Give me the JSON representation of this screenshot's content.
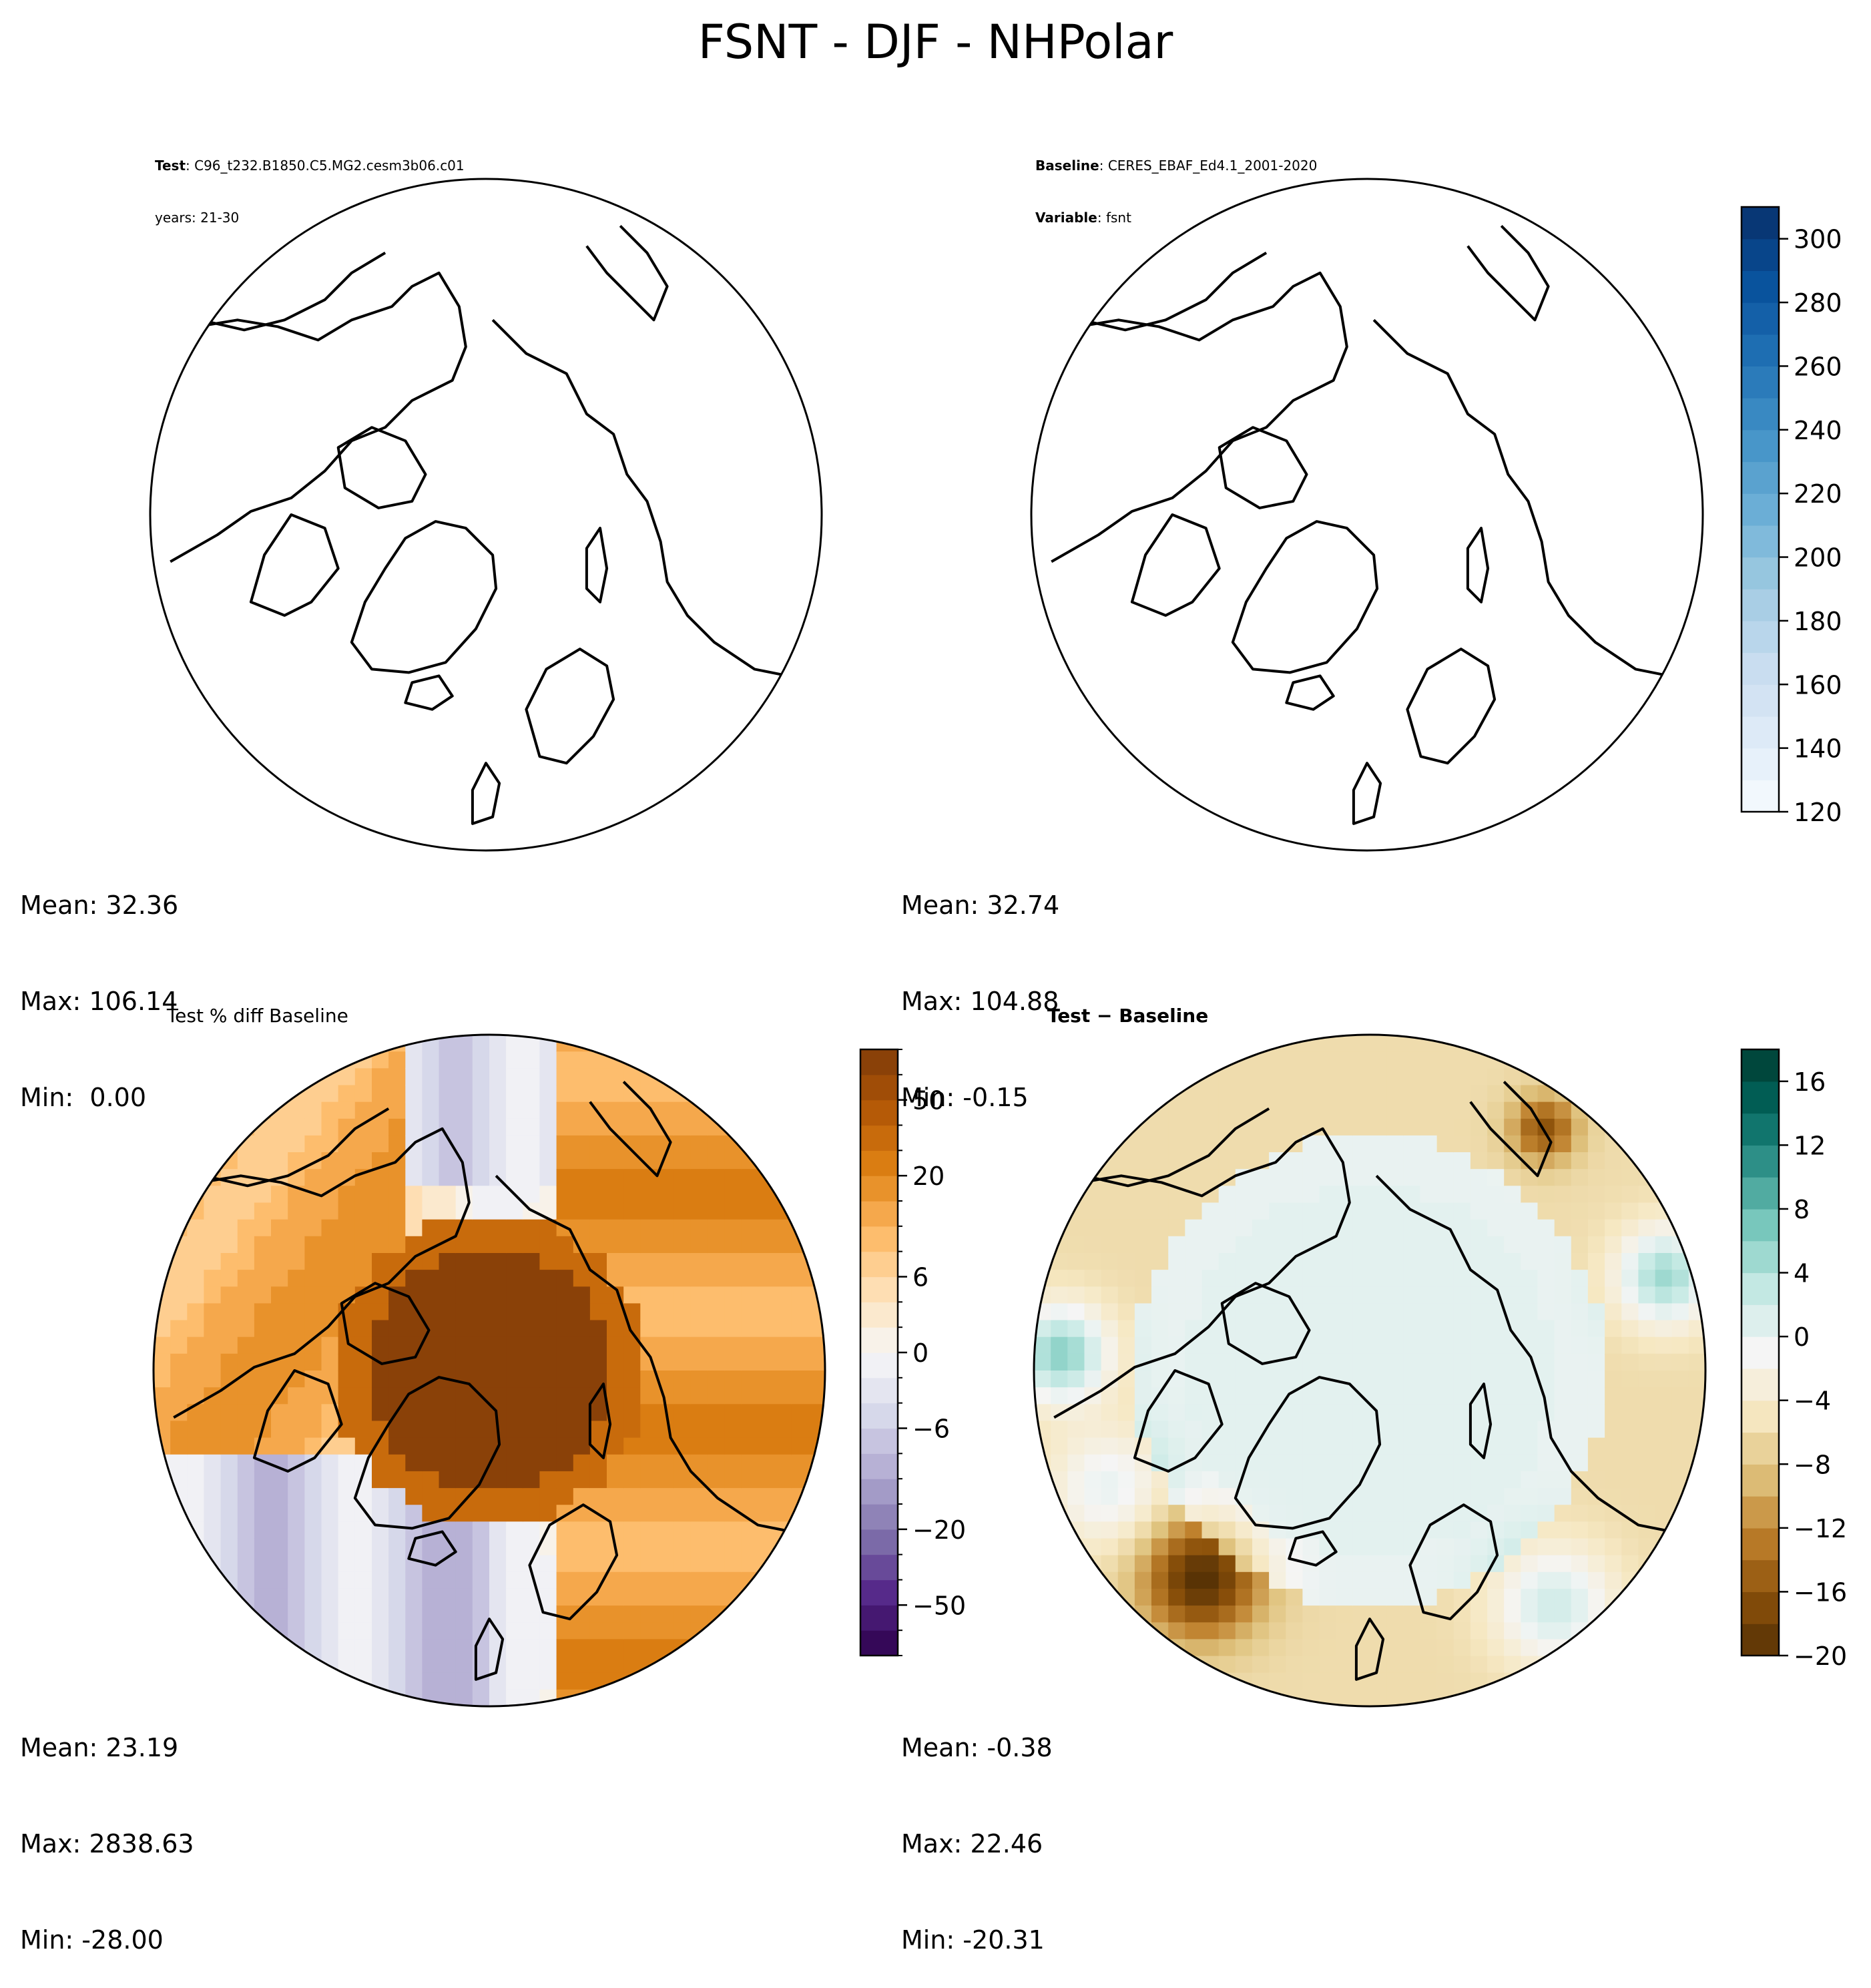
{
  "figure": {
    "title": "FSNT - DJF - NHPolar"
  },
  "chart_data": [
    {
      "type": "heatmap",
      "panel": "test",
      "title_lines": [
        {
          "bold": "Test",
          "text": ": C96_t232.B1850.C5.MG2.cesm3b06.c01"
        },
        {
          "bold": "",
          "text": "years: 21-30"
        }
      ],
      "field": "blank",
      "stats": {
        "mean": "Mean: 32.36",
        "max": "Max: 106.14",
        "min": "Min:  0.00"
      }
    },
    {
      "type": "heatmap",
      "panel": "baseline",
      "title_lines": [
        {
          "bold": "Baseline",
          "text": ": CERES_EBAF_Ed4.1_2001-2020"
        },
        {
          "bold": "Variable",
          "text": ": fsnt"
        }
      ],
      "field": "blank",
      "stats": {
        "mean": "Mean: 32.74",
        "max": "Max: 104.88",
        "min": "Min: -0.15"
      },
      "colorbar": {
        "colormap": "Blues",
        "range": [
          120,
          310
        ],
        "ticks": [
          120,
          140,
          160,
          180,
          200,
          220,
          240,
          260,
          280,
          300
        ],
        "tick_labels": [
          "120",
          "140",
          "160",
          "180",
          "200",
          "220",
          "240",
          "260",
          "280",
          "300"
        ],
        "n_levels": 19
      }
    },
    {
      "type": "heatmap",
      "panel": "pct_diff",
      "title_lines": [
        {
          "bold": "",
          "text": "Test % diff Baseline"
        }
      ],
      "field": "pct_diff",
      "stats": {
        "mean": "Mean: 23.19",
        "max": "Max: 2838.63",
        "min": "Min: -28.00"
      },
      "colorbar": {
        "colormap": "PuOr_r",
        "levels": [
          -100,
          -75,
          -50,
          -40,
          -30,
          -20,
          -15,
          -10,
          -8,
          -6,
          -4,
          -2,
          0,
          2,
          4,
          6,
          8,
          10,
          15,
          20,
          30,
          40,
          50,
          75,
          100
        ],
        "tick_labels": [
          "−50",
          "−20",
          "−6",
          "0",
          "6",
          "20",
          "50"
        ],
        "tick_values": [
          -50,
          -20,
          -6,
          0,
          6,
          20,
          50
        ]
      }
    },
    {
      "type": "heatmap",
      "panel": "diff",
      "title_lines": [
        {
          "bold": "Test − Baseline",
          "text": ""
        }
      ],
      "field": "diff",
      "stats": {
        "mean": "Mean: -0.38",
        "max": "Max: 22.46",
        "min": "Min: -20.31"
      },
      "colorbar": {
        "colormap": "BrBG",
        "range": [
          -20,
          18
        ],
        "ticks": [
          -20,
          -16,
          -12,
          -8,
          -4,
          0,
          4,
          8,
          12,
          16
        ],
        "tick_labels": [
          "−20",
          "−16",
          "−12",
          "−8",
          "−4",
          "0",
          "4",
          "8",
          "12",
          "16"
        ],
        "n_levels": 19
      }
    }
  ]
}
